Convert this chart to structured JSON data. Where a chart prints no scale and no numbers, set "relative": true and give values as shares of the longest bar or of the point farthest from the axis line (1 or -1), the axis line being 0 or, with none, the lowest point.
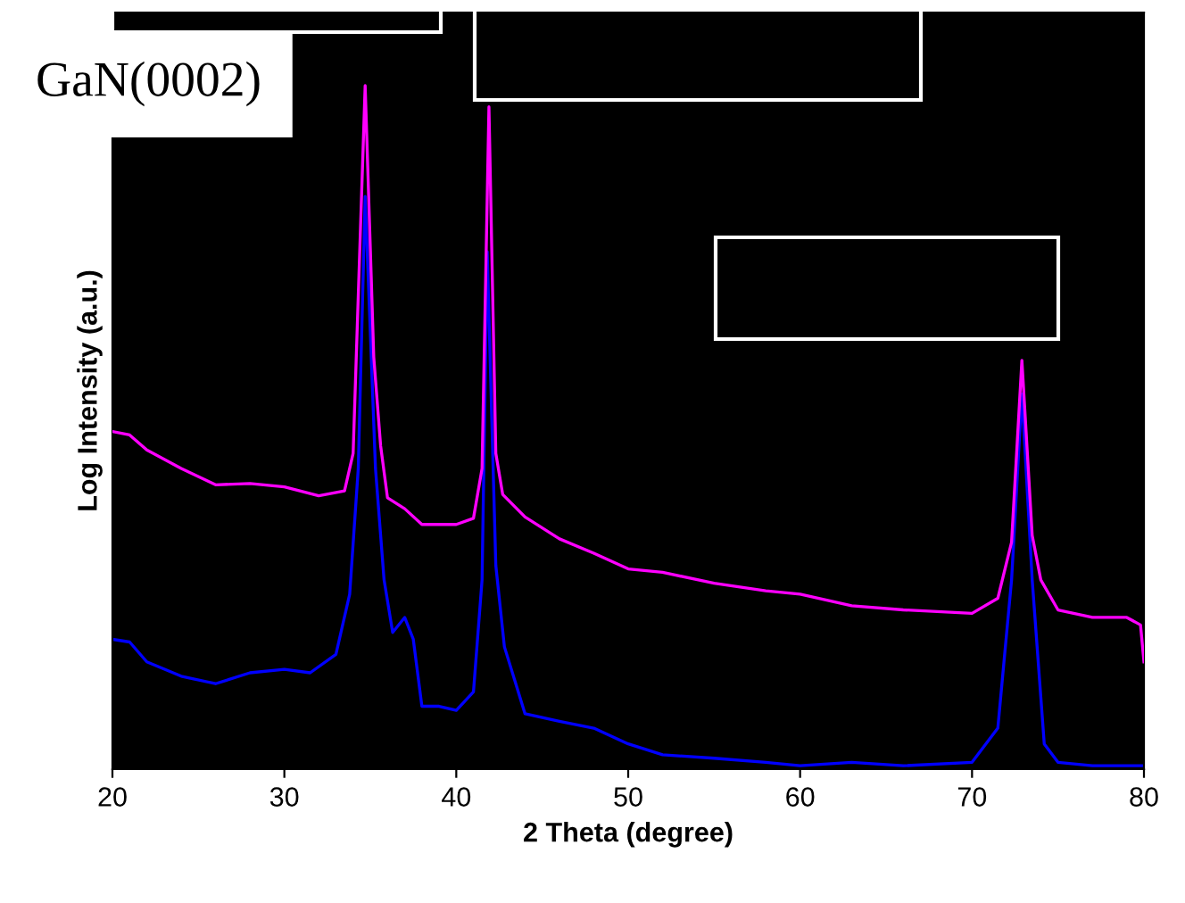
{
  "chart_data": {
    "type": "line",
    "xlabel": "2 Theta (degree)",
    "ylabel": "Log Intensity (a.u.)",
    "relative": true,
    "annotations": [
      "GaN(0002)"
    ],
    "xlim": [
      20,
      80
    ],
    "xticks": [
      20,
      30,
      40,
      50,
      60,
      70,
      80
    ],
    "grid": false,
    "marker": "none",
    "line_style": "solid",
    "series": [
      {
        "color": "#ff00ff",
        "x": [
          20,
          21,
          22,
          24,
          26,
          28,
          30,
          32,
          33.5,
          34,
          34.7,
          35.2,
          35.6,
          36,
          37,
          38,
          40,
          41,
          41.5,
          41.9,
          42.3,
          42.7,
          44,
          46,
          48,
          50,
          52,
          55,
          58,
          60,
          63,
          66,
          70,
          71.5,
          72.3,
          72.9,
          73.5,
          74,
          75,
          77,
          79,
          79.8,
          80
        ],
        "values": [
          0.494,
          0.489,
          0.467,
          0.44,
          0.416,
          0.418,
          0.413,
          0.4,
          0.407,
          0.462,
          1.0,
          0.603,
          0.473,
          0.397,
          0.381,
          0.358,
          0.358,
          0.367,
          0.44,
          0.969,
          0.462,
          0.402,
          0.369,
          0.337,
          0.316,
          0.293,
          0.288,
          0.272,
          0.261,
          0.256,
          0.239,
          0.233,
          0.228,
          0.25,
          0.332,
          0.598,
          0.342,
          0.277,
          0.233,
          0.222,
          0.222,
          0.211,
          0.157
        ]
      },
      {
        "color": "#0000ff",
        "x": [
          20,
          21,
          22,
          24,
          26,
          28,
          30,
          31.5,
          33,
          33.8,
          34.3,
          34.7,
          35.3,
          35.8,
          36.3,
          37,
          37.5,
          38,
          39,
          40,
          41,
          41.5,
          41.8,
          42.3,
          42.8,
          44,
          46,
          48,
          50,
          52,
          55,
          58,
          60,
          63,
          66,
          70,
          71.5,
          72.3,
          72.9,
          73.5,
          74.2,
          75,
          77,
          80
        ],
        "values": [
          0.19,
          0.186,
          0.157,
          0.136,
          0.125,
          0.141,
          0.146,
          0.141,
          0.168,
          0.256,
          0.44,
          0.838,
          0.44,
          0.277,
          0.2,
          0.222,
          0.19,
          0.092,
          0.092,
          0.086,
          0.113,
          0.277,
          0.757,
          0.298,
          0.179,
          0.081,
          0.07,
          0.06,
          0.037,
          0.021,
          0.016,
          0.01,
          0.005,
          0.01,
          0.005,
          0.01,
          0.06,
          0.277,
          0.549,
          0.277,
          0.037,
          0.01,
          0.005,
          0.005
        ]
      }
    ]
  }
}
